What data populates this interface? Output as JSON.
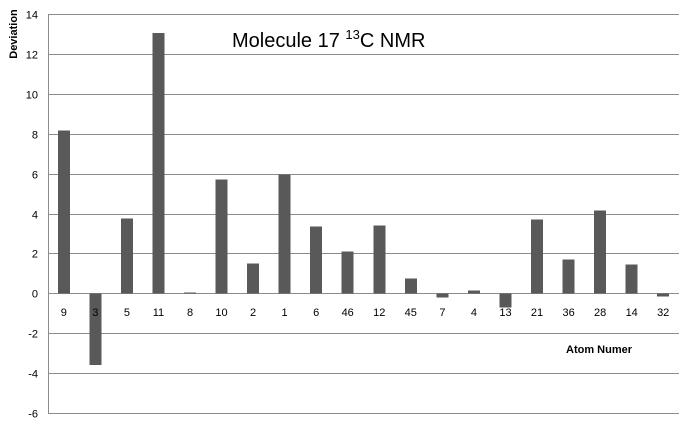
{
  "chart_data": {
    "type": "bar",
    "title_prefix": "Molecule 17 ",
    "title_superscript": "13",
    "title_suffix": "C NMR",
    "ylabel": "Deviation",
    "xlabel": "Atom Numer",
    "ylim": [
      -6,
      14
    ],
    "yticks": [
      -6,
      -4,
      -2,
      0,
      2,
      4,
      6,
      8,
      10,
      12,
      14
    ],
    "grid": true,
    "categories": [
      "9",
      "3",
      "5",
      "11",
      "8",
      "10",
      "2",
      "1",
      "6",
      "46",
      "12",
      "45",
      "7",
      "4",
      "13",
      "21",
      "36",
      "28",
      "14",
      "32"
    ],
    "values": [
      8.15,
      -3.6,
      3.75,
      13.05,
      0.05,
      5.7,
      1.5,
      5.95,
      3.35,
      2.1,
      3.4,
      0.75,
      -0.2,
      0.15,
      -0.7,
      3.7,
      1.7,
      4.15,
      1.45,
      -0.15
    ],
    "bar_color": "#595959",
    "grid_color": "#8c8c8c"
  }
}
